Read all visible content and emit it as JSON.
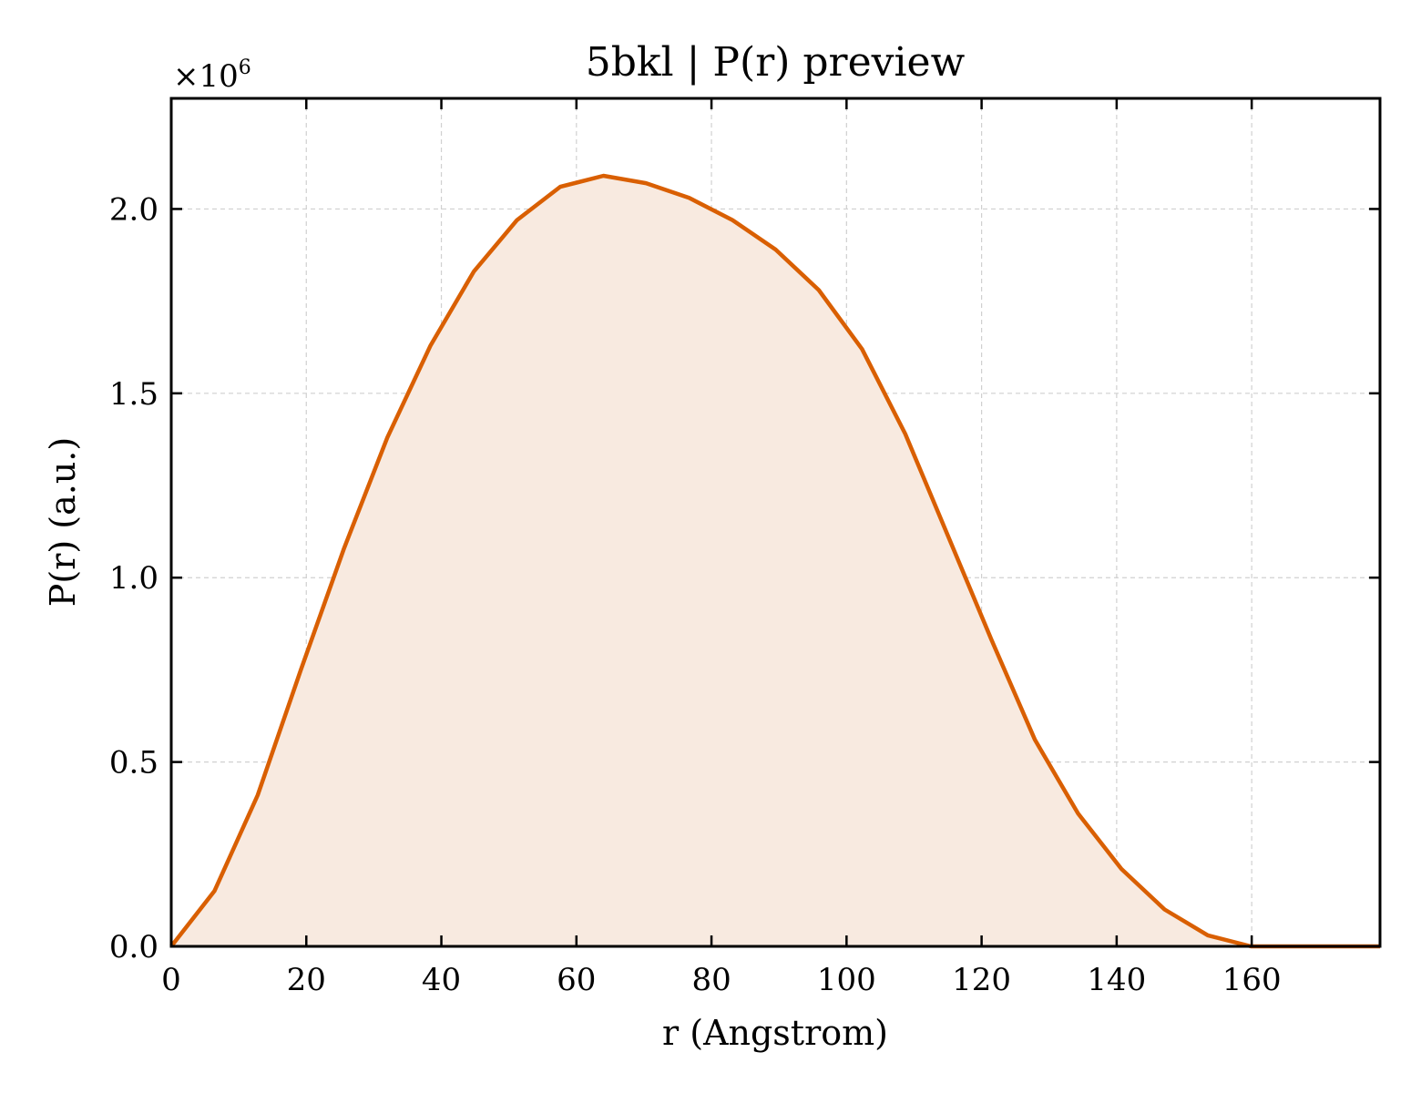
{
  "chart_data": {
    "type": "area",
    "title": "5bkl | P(r) preview",
    "xlabel": "r (Angstrom)",
    "ylabel": "P(r) (a.u.)",
    "y_multiplier_label": "×10",
    "y_multiplier_exponent": "6",
    "xlim": [
      0,
      179
    ],
    "ylim": [
      0,
      2.3
    ],
    "y_scale_factor": 1000000,
    "x_ticks": [
      0,
      20,
      40,
      60,
      80,
      100,
      120,
      140,
      160
    ],
    "y_ticks": [
      0.0,
      0.5,
      1.0,
      1.5,
      2.0
    ],
    "grid": true,
    "line_color": "#d95f02",
    "fill_color": "#f8eae0",
    "series": [
      {
        "x": [
          0,
          6.4,
          12.8,
          19.2,
          25.6,
          32.0,
          38.4,
          44.8,
          51.2,
          57.6,
          64.0,
          70.3,
          76.7,
          83.1,
          89.5,
          95.9,
          102.3,
          108.7,
          115.1,
          121.5,
          127.9,
          134.3,
          140.7,
          147.1,
          153.5,
          159.9,
          179
        ],
        "y": [
          0.0,
          0.15,
          0.41,
          0.75,
          1.08,
          1.38,
          1.63,
          1.83,
          1.97,
          2.06,
          2.09,
          2.07,
          2.03,
          1.97,
          1.89,
          1.78,
          1.62,
          1.39,
          1.11,
          0.83,
          0.56,
          0.36,
          0.21,
          0.1,
          0.03,
          0.0,
          0.0
        ]
      }
    ]
  }
}
